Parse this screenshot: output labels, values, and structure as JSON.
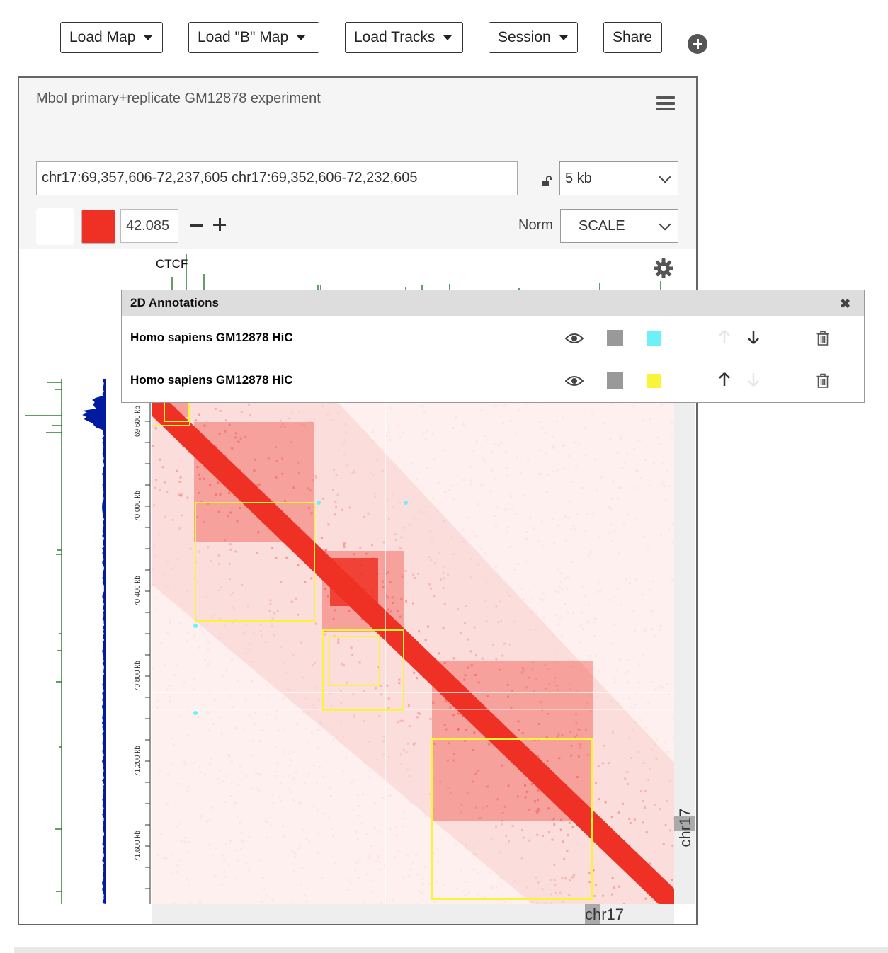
{
  "nav": {
    "load_map": "Load Map",
    "load_b_map": "Load \"B\" Map",
    "load_tracks": "Load Tracks",
    "session": "Session",
    "share": "Share"
  },
  "browser": {
    "title": "MboI primary+replicate GM12878 experiment",
    "locus": "chr17:69,357,606-72,237,605 chr17:69,352,606-72,232,605",
    "resolution": "5 kb",
    "color_scale_value": "42.085",
    "norm_label": "Norm",
    "norm_value": "SCALE",
    "track_label": "CTCF",
    "x_chromosome": "chr17",
    "y_chromosome": "chr17",
    "ruler_ticks": [
      "69,600 kb",
      "70,000 kb",
      "70,400 kb",
      "70,800 kb",
      "71,200 kb",
      "71,600 kb"
    ],
    "colors": {
      "map": "#ee3124",
      "ctcf_track": "#2e7d32",
      "left_track": "#001aa0"
    }
  },
  "annotations_panel": {
    "title": "2D Annotations",
    "rows": [
      {
        "name": "Homo sapiens GM12878 HiC",
        "color": "#6ef0f9",
        "up_enabled": false,
        "down_enabled": true
      },
      {
        "name": "Homo sapiens GM12878 HiC",
        "color": "#f9f43a",
        "up_enabled": true,
        "down_enabled": false
      }
    ]
  }
}
